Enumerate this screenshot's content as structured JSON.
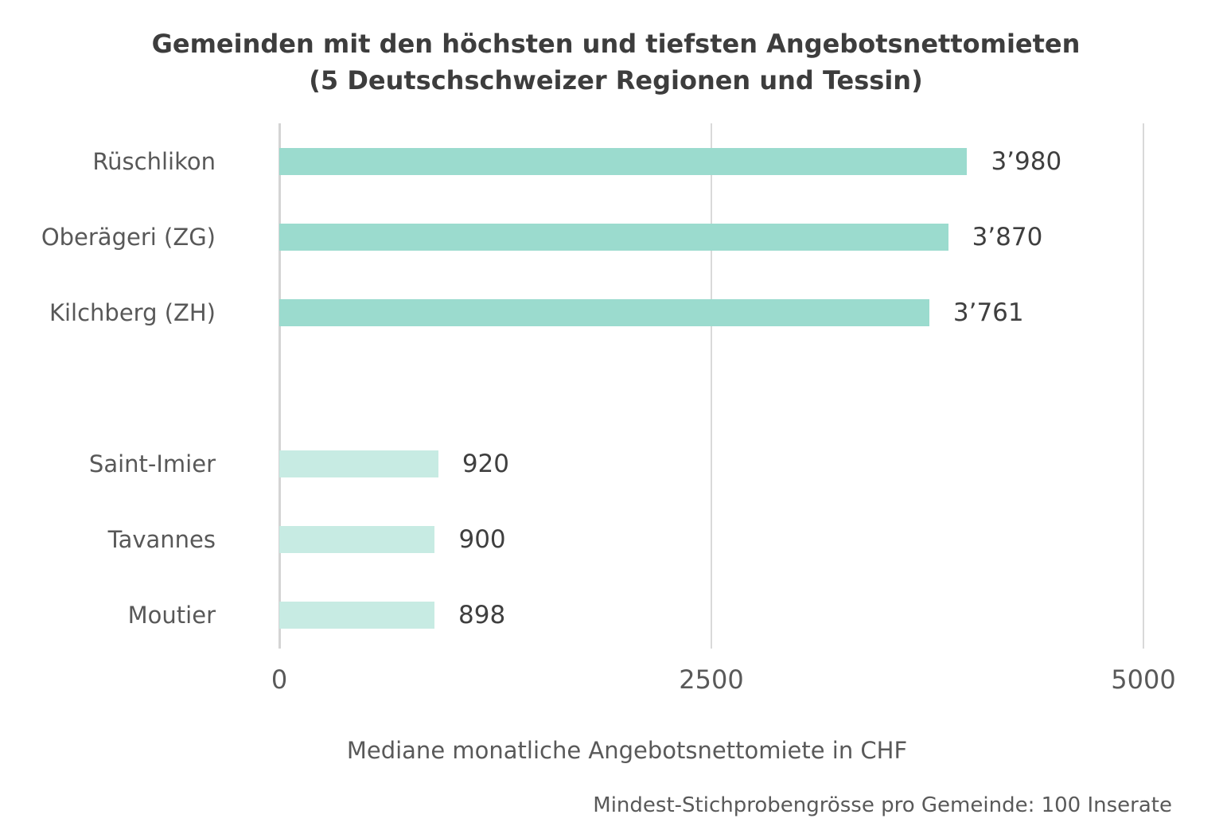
{
  "chart_data": {
    "type": "bar",
    "orientation": "horizontal",
    "title_line1": "Gemeinden mit den höchsten und tiefsten Angebotsnettomieten",
    "title_line2": "(5 Deutschschweizer Regionen und Tessin)",
    "xlabel": "Mediane monatliche Angebotsnettomiete in CHF",
    "footnote": "Mindest-Stichprobengrösse pro Gemeinde: 100 Inserate",
    "xlim": [
      0,
      5000
    ],
    "x_tick_values": [
      0,
      2500,
      5000
    ],
    "x_tick_labels": [
      "0",
      "2500",
      "5000"
    ],
    "grid": "vertical-gridlines-at-ticks",
    "legend": "none",
    "groups": [
      {
        "name": "hoechste-mieten",
        "color": "#9bdbce",
        "bars": [
          {
            "label": "Rüschlikon",
            "value": 3980,
            "value_label": "3’980"
          },
          {
            "label": "Oberägeri (ZG)",
            "value": 3870,
            "value_label": "3’870"
          },
          {
            "label": "Kilchberg (ZH)",
            "value": 3761,
            "value_label": "3’761"
          }
        ]
      },
      {
        "name": "tiefste-mieten",
        "color": "#c7ebe3",
        "bars": [
          {
            "label": "Saint-Imier",
            "value": 920,
            "value_label": "920"
          },
          {
            "label": "Tavannes",
            "value": 900,
            "value_label": "900"
          },
          {
            "label": "Moutier",
            "value": 898,
            "value_label": "898"
          }
        ]
      }
    ]
  },
  "colors": {
    "bar_high": "#9bdbce",
    "bar_low": "#c7ebe3",
    "gridline": "#d9d9d9",
    "title_text": "#3d3d3d",
    "label_text": "#585858",
    "value_text": "#3f3f3f",
    "background": "#ffffff"
  }
}
